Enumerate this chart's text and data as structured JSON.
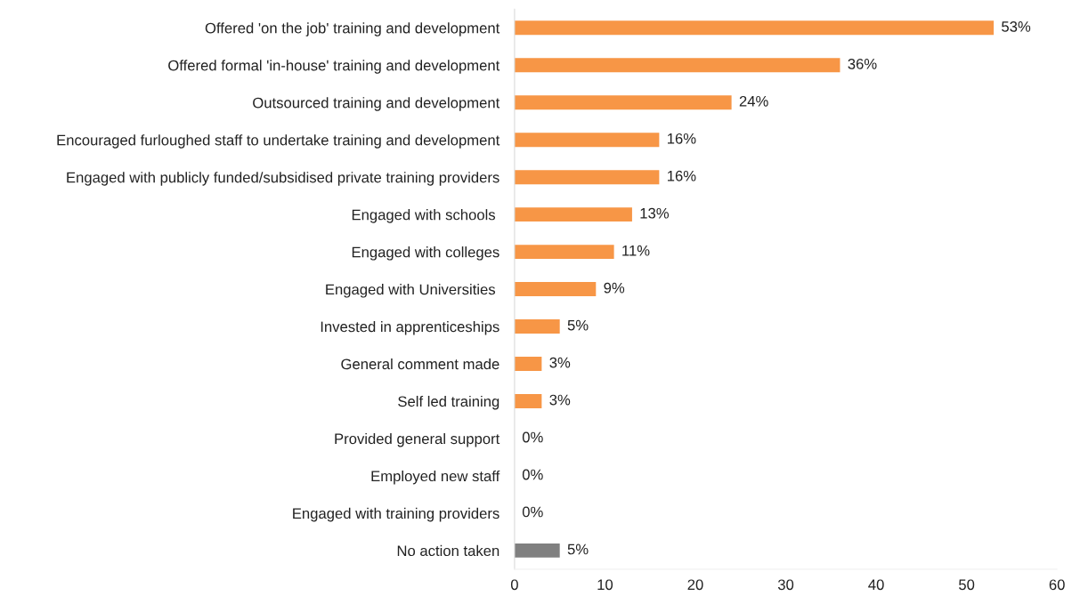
{
  "chart_data": {
    "type": "bar",
    "orientation": "horizontal",
    "categories": [
      "Offered 'on the job' training and development",
      "Offered formal 'in-house' training and development",
      "Outsourced training and development",
      "Encouraged furloughed staff to undertake training and development",
      "Engaged with publicly funded/subsidised private training providers",
      "Engaged with schools ",
      "Engaged with colleges",
      "Engaged with Universities ",
      "Invested in apprenticeships",
      "General comment made",
      "Self led training",
      "Provided general support",
      "Employed new staff",
      "Engaged with training providers",
      "No action taken"
    ],
    "values": [
      53,
      36,
      24,
      16,
      16,
      13,
      11,
      9,
      5,
      3,
      3,
      0,
      0,
      0,
      5
    ],
    "value_labels": [
      "53%",
      "36%",
      "24%",
      "16%",
      "16%",
      "13%",
      "11%",
      "9%",
      "5%",
      "3%",
      "3%",
      "0%",
      "0%",
      "0%",
      "5%"
    ],
    "colors": [
      "#f79646",
      "#f79646",
      "#f79646",
      "#f79646",
      "#f79646",
      "#f79646",
      "#f79646",
      "#f79646",
      "#f79646",
      "#f79646",
      "#f79646",
      "#f79646",
      "#f79646",
      "#f79646",
      "#808080"
    ],
    "xlim": [
      0,
      60
    ],
    "xticks": [
      0,
      10,
      20,
      30,
      40,
      50,
      60
    ],
    "grid": false
  }
}
